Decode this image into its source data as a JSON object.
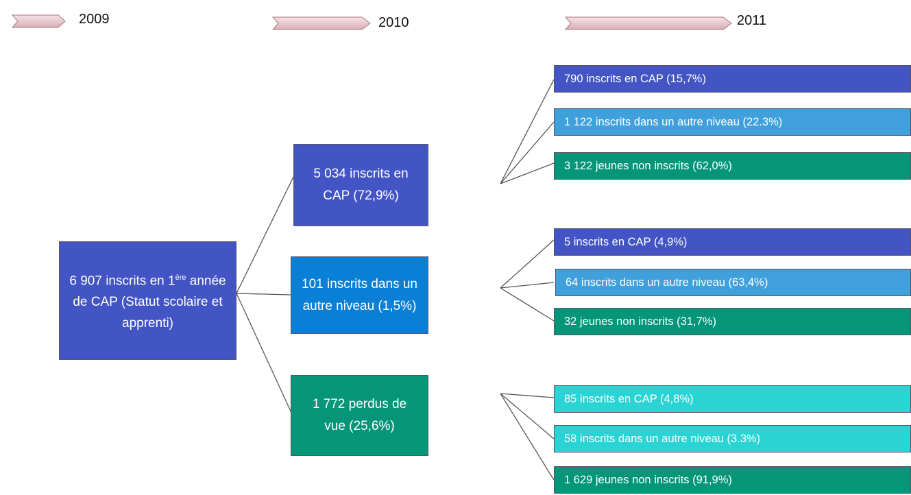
{
  "header": {
    "years": [
      "2009",
      "2010",
      "2011"
    ]
  },
  "root": {
    "text_before": "6 907 inscrits en 1",
    "superscript": "ère",
    "text_after": " année de CAP (Statut scolaire et apprenti)"
  },
  "level2": [
    {
      "label": "5 034 inscrits en CAP (72,9%)",
      "children": [
        "790 inscrits en CAP (15,7%)",
        "1 122 inscrits dans un autre niveau (22.3%)",
        "3 122 jeunes non inscrits (62,0%)"
      ]
    },
    {
      "label": "101 inscrits dans un autre niveau (1,5%)",
      "children": [
        "5 inscrits en CAP (4,9%)",
        "64 inscrits dans un autre niveau (63,4%)",
        "32 jeunes non inscrits (31,7%)"
      ]
    },
    {
      "label": "1 772 perdus de vue (25,6%)",
      "children": [
        "85 inscrits en CAP (4,8%)",
        "58 inscrits dans un autre niveau (3.3%)",
        "1 629 jeunes non inscrits (91,9%)"
      ]
    }
  ]
}
